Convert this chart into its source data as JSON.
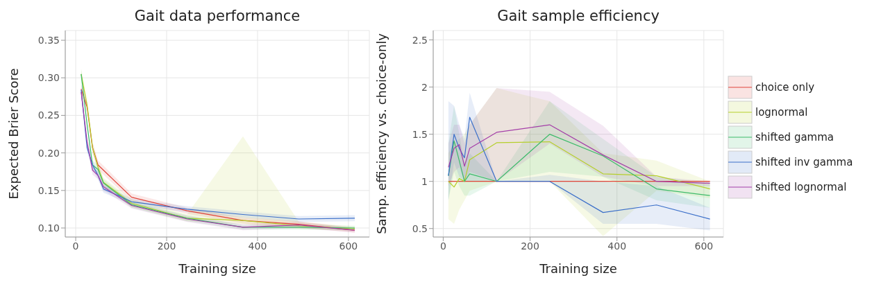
{
  "chart_data": [
    {
      "type": "line",
      "title": "Gait data performance",
      "xlabel": "Training size",
      "ylabel": "Expected Brier Score",
      "x": [
        12,
        25,
        37,
        49,
        61,
        123,
        245,
        368,
        491,
        614
      ],
      "xlim": [
        -23,
        646
      ],
      "xticks": [
        0,
        200,
        400,
        600
      ],
      "ylim": [
        0.088,
        0.363
      ],
      "yticks": [
        {
          "value": 0.1,
          "label": "0.10"
        },
        {
          "value": 0.15,
          "label": "0.15"
        },
        {
          "value": 0.2,
          "label": "0.20"
        },
        {
          "value": 0.25,
          "label": "0.25"
        },
        {
          "value": 0.3,
          "label": "0.30"
        },
        {
          "value": 0.35,
          "label": "0.35"
        }
      ],
      "grid": true,
      "legend": false,
      "series": [
        {
          "color": "#e0443a",
          "values": [
            0.285,
            0.261,
            0.207,
            0.184,
            0.177,
            0.141,
            0.123,
            0.11,
            0.105,
            0.097
          ],
          "lower": [
            0.278,
            0.255,
            0.2,
            0.178,
            0.171,
            0.136,
            0.119,
            0.106,
            0.101,
            0.094
          ],
          "upper": [
            0.292,
            0.267,
            0.214,
            0.19,
            0.183,
            0.146,
            0.127,
            0.114,
            0.109,
            0.1
          ]
        },
        {
          "color": "#b5cf2b",
          "values": [
            0.305,
            0.264,
            0.207,
            0.181,
            0.161,
            0.133,
            0.113,
            0.11,
            0.103,
            0.099
          ],
          "lower": [
            0.298,
            0.258,
            0.2,
            0.175,
            0.155,
            0.128,
            0.109,
            0.105,
            0.099,
            0.096
          ],
          "upper": [
            0.312,
            0.27,
            0.214,
            0.187,
            0.167,
            0.138,
            0.118,
            0.222,
            0.108,
            0.102
          ]
        },
        {
          "color": "#3dbb6a",
          "values": [
            0.305,
            0.238,
            0.184,
            0.178,
            0.16,
            0.131,
            0.113,
            0.101,
            0.101,
            0.1
          ],
          "lower": [
            0.298,
            0.232,
            0.178,
            0.172,
            0.155,
            0.127,
            0.109,
            0.098,
            0.098,
            0.097
          ],
          "upper": [
            0.312,
            0.244,
            0.19,
            0.184,
            0.165,
            0.135,
            0.117,
            0.104,
            0.104,
            0.103
          ]
        },
        {
          "color": "#3b6fc9",
          "values": [
            0.284,
            0.207,
            0.184,
            0.17,
            0.152,
            0.135,
            0.125,
            0.118,
            0.112,
            0.113
          ],
          "lower": [
            0.277,
            0.201,
            0.178,
            0.165,
            0.147,
            0.131,
            0.121,
            0.114,
            0.108,
            0.109
          ],
          "upper": [
            0.291,
            0.213,
            0.19,
            0.175,
            0.157,
            0.139,
            0.129,
            0.122,
            0.116,
            0.117
          ]
        },
        {
          "color": "#a43ea8",
          "values": [
            0.281,
            0.215,
            0.177,
            0.17,
            0.155,
            0.13,
            0.112,
            0.101,
            0.104,
            0.097
          ],
          "lower": [
            0.274,
            0.209,
            0.171,
            0.165,
            0.15,
            0.126,
            0.108,
            0.097,
            0.1,
            0.094
          ],
          "upper": [
            0.288,
            0.221,
            0.183,
            0.175,
            0.16,
            0.134,
            0.116,
            0.105,
            0.108,
            0.1
          ]
        }
      ]
    },
    {
      "type": "line",
      "title": "Gait sample efficiency",
      "xlabel": "Training size",
      "ylabel": "Samp. efficiency vs. choice-only",
      "x": [
        12,
        25,
        37,
        49,
        61,
        123,
        245,
        368,
        491,
        614
      ],
      "xlim": [
        -23,
        645
      ],
      "xticks": [
        0,
        200,
        400,
        600
      ],
      "ylim": [
        0.41,
        2.6
      ],
      "yticks": [
        0.5,
        1,
        1.5,
        2,
        2.5
      ],
      "grid": true,
      "legend": "right",
      "series": [
        {
          "name": "choice only",
          "color": "#e0443a",
          "values": [
            1,
            1,
            1,
            1,
            1,
            1,
            1,
            1,
            1,
            1
          ]
        },
        {
          "name": "lognormal",
          "color": "#b5cf2b",
          "values": [
            1.0,
            0.94,
            1.03,
            1.0,
            1.23,
            1.41,
            1.42,
            1.08,
            1.06,
            0.92
          ],
          "lower": [
            0.6,
            0.55,
            0.7,
            0.8,
            0.9,
            1.0,
            1.0,
            0.42,
            0.9,
            0.82
          ],
          "upper": [
            1.3,
            1.4,
            1.45,
            1.5,
            1.6,
            1.99,
            1.85,
            1.3,
            1.22,
            1.0
          ]
        },
        {
          "name": "shifted gamma",
          "color": "#3dbb6a",
          "values": [
            1.06,
            1.43,
            1.22,
            1.0,
            1.08,
            1.0,
            1.5,
            1.27,
            0.92,
            0.85
          ],
          "lower": [
            0.8,
            1.1,
            0.95,
            0.85,
            0.85,
            1.0,
            1.1,
            1.05,
            0.8,
            0.72
          ],
          "upper": [
            1.4,
            1.8,
            1.5,
            1.2,
            1.3,
            1.0,
            1.85,
            1.45,
            1.05,
            0.98
          ]
        },
        {
          "name": "shifted inv gamma",
          "color": "#3b6fc9",
          "values": [
            1.06,
            1.5,
            1.35,
            1.25,
            1.68,
            1.0,
            1.0,
            0.67,
            0.75,
            0.6
          ],
          "lower": [
            0.8,
            1.2,
            1.05,
            1.0,
            1.0,
            1.0,
            1.0,
            0.55,
            0.55,
            0.48
          ],
          "upper": [
            1.85,
            1.8,
            1.6,
            1.45,
            1.94,
            1.0,
            1.07,
            1.0,
            0.95,
            0.72
          ]
        },
        {
          "name": "shifted lognormal",
          "color": "#a43ea8",
          "values": [
            1.15,
            1.35,
            1.39,
            1.16,
            1.35,
            1.52,
            1.6,
            1.28,
            1.0,
            0.98
          ],
          "lower": [
            0.95,
            1.1,
            1.15,
            1.0,
            1.1,
            1.0,
            1.4,
            1.05,
            0.95,
            0.95
          ],
          "upper": [
            1.4,
            1.6,
            1.6,
            1.4,
            1.6,
            1.99,
            1.95,
            1.59,
            1.05,
            1.0
          ]
        }
      ]
    }
  ]
}
